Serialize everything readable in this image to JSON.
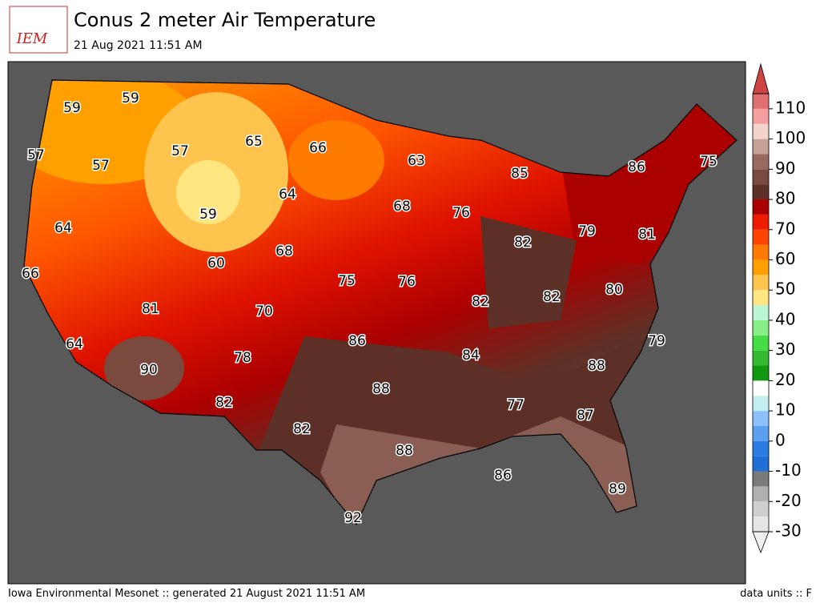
{
  "header": {
    "logo": "IEM",
    "title": "Conus 2 meter Air Temperature",
    "subtitle": "21 Aug 2021 11:51 AM"
  },
  "map": {
    "labels": [
      59,
      59,
      57,
      57,
      57,
      65,
      66,
      63,
      85,
      86,
      75,
      64,
      59,
      68,
      76,
      64,
      82,
      79,
      81,
      60,
      68,
      66,
      75,
      76,
      82,
      82,
      80,
      81,
      70,
      86,
      84,
      79,
      64,
      78,
      88,
      90,
      88,
      77,
      87,
      82,
      82,
      88,
      86,
      89,
      92
    ]
  },
  "colorbar": {
    "range": [
      -30,
      115
    ],
    "ticks": [
      -30,
      -20,
      -10,
      0,
      10,
      20,
      30,
      40,
      50,
      60,
      70,
      80,
      90,
      100,
      110
    ],
    "colors": [
      "#e6e6e6",
      "#cfcfcf",
      "#b0b0b0",
      "#7a7a7a",
      "#1f6fd6",
      "#2a7de0",
      "#5c9ef0",
      "#8cc0ff",
      "#c4eef0",
      "#ffffff",
      "#119911",
      "#33bb33",
      "#44dd44",
      "#88ee88",
      "#bbf5d5",
      "#ffe680",
      "#ffc44d",
      "#ffa000",
      "#ff7a00",
      "#ff4400",
      "#ee1c00",
      "#aa0000",
      "#5c3026",
      "#7a4a3e",
      "#9a6a5e",
      "#c4a096",
      "#f2d4cc",
      "#f5a0a0",
      "#e07070"
    ],
    "arrow_colors": [
      "#f0f0f0",
      "#cc4444"
    ]
  },
  "footer": {
    "left": "Iowa Environmental Mesonet :: generated 21 August 2021 11:51 AM",
    "right": "data units :: F"
  }
}
